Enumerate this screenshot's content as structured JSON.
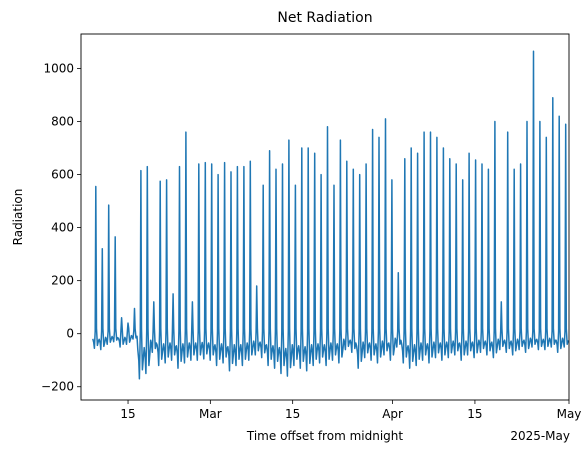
{
  "chart_data": {
    "type": "line",
    "title": "Net Radiation",
    "xlabel": "Time offset from midnight",
    "ylabel": "Radiation",
    "x_offset_label": "2025-May",
    "x_range": [
      "2025-02-07",
      "2025-05-01"
    ],
    "ylim": [
      -250,
      1130
    ],
    "grid": false,
    "x_ticks": [
      {
        "date": "2025-02-15",
        "label": "15"
      },
      {
        "date": "2025-03-01",
        "label": "Mar"
      },
      {
        "date": "2025-03-15",
        "label": "15"
      },
      {
        "date": "2025-04-01",
        "label": "Apr"
      },
      {
        "date": "2025-04-15",
        "label": "15"
      },
      {
        "date": "2025-05-01",
        "label": "May"
      }
    ],
    "y_ticks": [
      -200,
      0,
      200,
      400,
      600,
      800,
      1000
    ],
    "series": [
      {
        "color": "#1f77b4",
        "start_date": "2025-02-09",
        "daily_peaks": [
          555,
          320,
          485,
          365,
          60,
          40,
          95,
          615,
          630,
          120,
          575,
          580,
          150,
          630,
          760,
          120,
          640,
          645,
          640,
          600,
          645,
          610,
          630,
          630,
          650,
          180,
          560,
          690,
          620,
          640,
          730,
          560,
          700,
          700,
          680,
          600,
          780,
          560,
          730,
          650,
          620,
          600,
          640,
          770,
          740,
          810,
          580,
          230,
          660,
          700,
          680,
          760,
          760,
          740,
          700,
          660,
          640,
          580,
          680,
          655,
          640,
          620,
          800,
          120,
          760,
          620,
          640,
          800,
          1065,
          800,
          740,
          890,
          820,
          790
        ],
        "daily_troughs": [
          -55,
          -60,
          -40,
          -30,
          -50,
          -40,
          -20,
          -170,
          -150,
          -70,
          -120,
          -110,
          -100,
          -130,
          -110,
          -100,
          -100,
          -95,
          -100,
          -120,
          -110,
          -140,
          -120,
          -120,
          -100,
          -80,
          -90,
          -120,
          -130,
          -150,
          -160,
          -120,
          -130,
          -140,
          -120,
          -110,
          -120,
          -100,
          -110,
          -60,
          -70,
          -130,
          -90,
          -100,
          -110,
          -80,
          -100,
          -50,
          -110,
          -130,
          -120,
          -100,
          -110,
          -90,
          -100,
          -90,
          -80,
          -100,
          -80,
          -90,
          -70,
          -80,
          -90,
          -60,
          -70,
          -80,
          -60,
          -70,
          -50,
          -60,
          -60,
          -50,
          -70,
          -50
        ]
      }
    ]
  }
}
